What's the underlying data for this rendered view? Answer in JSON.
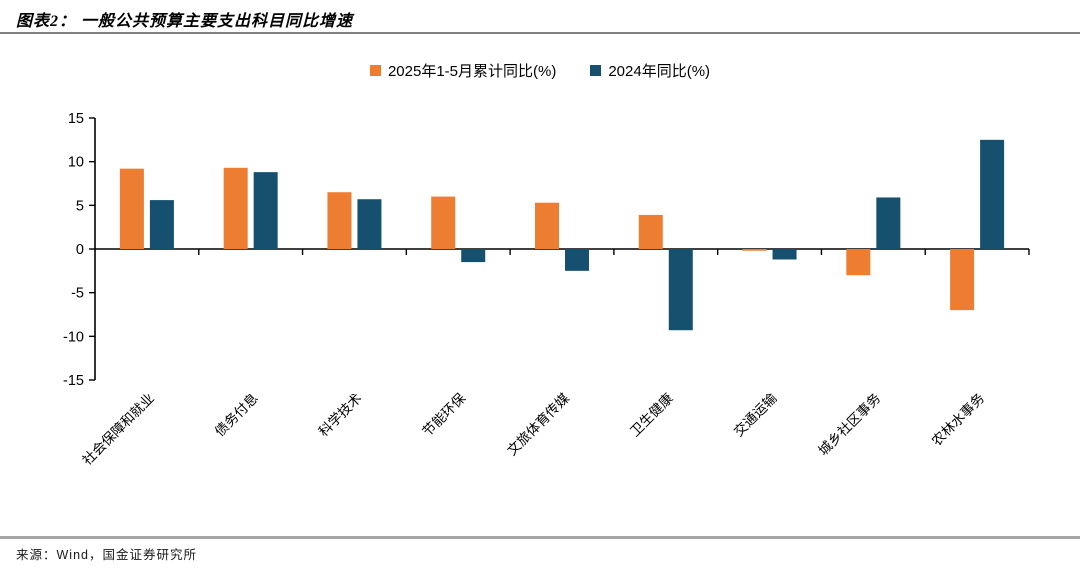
{
  "title": "图表2： 一般公共预算主要支出科目同比增速",
  "source": "来源：Wind，国金证券研究所",
  "colors": {
    "series_2025": "#ED7D31",
    "series_2024": "#15506F",
    "axis": "#000000",
    "rule_top": "#808080",
    "rule_bottom": "#A6A6A6",
    "text": "#000000"
  },
  "chart_data": {
    "type": "bar",
    "title": "一般公共预算主要支出科目同比增速",
    "categories": [
      "社会保障和就业",
      "债务付息",
      "科学技术",
      "节能环保",
      "文旅体育传媒",
      "卫生健康",
      "交通运输",
      "城乡社区事务",
      "农林水事务"
    ],
    "series": [
      {
        "name": "2025年1-5月累计同比(%)",
        "color": "#ED7D31",
        "values": [
          9.2,
          9.3,
          6.5,
          6.0,
          5.3,
          3.9,
          -0.2,
          -3.0,
          -7.0
        ]
      },
      {
        "name": "2024年同比(%)",
        "color": "#15506F",
        "values": [
          5.6,
          8.8,
          5.7,
          -1.5,
          -2.5,
          -9.3,
          -1.2,
          5.9,
          12.5
        ]
      }
    ],
    "xlabel": "",
    "ylabel": "",
    "ylim": [
      -15,
      15
    ],
    "ytick_step": 5,
    "yticks": [
      15,
      10,
      5,
      0,
      -5,
      -10,
      -15
    ],
    "grid": false,
    "legend_position": "top",
    "xlabel_rotation_deg": -45
  }
}
